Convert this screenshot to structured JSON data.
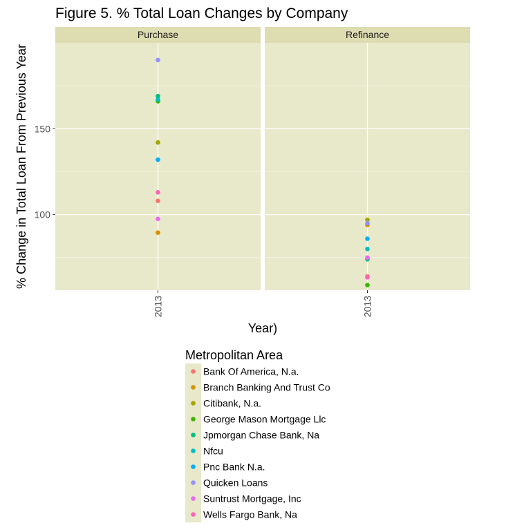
{
  "chart_data": {
    "type": "scatter",
    "title": "Figure 5. % Total Loan Changes by Company",
    "xlabel": "Year)",
    "ylabel": "% Change in Total Loan From Previous Year",
    "ylim": [
      56,
      200
    ],
    "yticks": [
      100,
      150
    ],
    "x_categories": [
      "2013"
    ],
    "facets": [
      "Purchase",
      "Refinance"
    ],
    "grid": true,
    "legend_title": "Metropolitan Area",
    "legend_position": "bottom",
    "series": [
      {
        "name": "Bank Of America, N.a.",
        "color": "#f8766d",
        "values": {
          "Purchase": 108,
          "Refinance": 64
        }
      },
      {
        "name": "Branch Banking And Trust Co",
        "color": "#d89000",
        "values": {
          "Purchase": 89.5,
          "Refinance": 94
        }
      },
      {
        "name": "Citibank, N.a.",
        "color": "#a3a500",
        "values": {
          "Purchase": 142,
          "Refinance": 97
        }
      },
      {
        "name": "George Mason Mortgage Llc",
        "color": "#39b600",
        "values": {
          "Purchase": 166,
          "Refinance": 59
        }
      },
      {
        "name": "Jpmorgan Chase Bank, Na",
        "color": "#00bf7d",
        "values": {
          "Purchase": 169,
          "Refinance": 74
        }
      },
      {
        "name": "Nfcu",
        "color": "#00bfc4",
        "values": {
          "Purchase": 167,
          "Refinance": 80
        }
      },
      {
        "name": "Pnc Bank N.a.",
        "color": "#00b0f6",
        "values": {
          "Purchase": 132,
          "Refinance": 86
        }
      },
      {
        "name": "Quicken Loans",
        "color": "#9590ff",
        "values": {
          "Purchase": 190,
          "Refinance": 95
        }
      },
      {
        "name": "Suntrust Mortgage, Inc",
        "color": "#e76bf3",
        "values": {
          "Purchase": 97.5,
          "Refinance": 75
        }
      },
      {
        "name": "Wells Fargo Bank, Na",
        "color": "#ff62bc",
        "values": {
          "Purchase": 113,
          "Refinance": 63.5
        }
      }
    ]
  }
}
